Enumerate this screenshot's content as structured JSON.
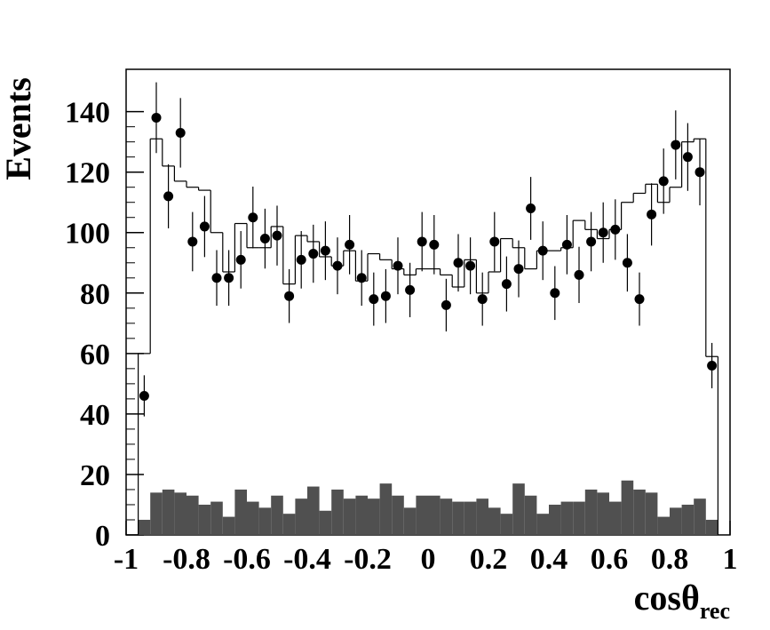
{
  "chart_data": {
    "type": "histogram",
    "ylabel": "Events",
    "xlabel": "cosθ",
    "xlabel_sub": "rec",
    "xlim": [
      -1,
      1
    ],
    "ylim": [
      0,
      154
    ],
    "xticks": [
      -1,
      -0.8,
      -0.6,
      -0.4,
      -0.2,
      0,
      0.2,
      0.4,
      0.6,
      0.8,
      1
    ],
    "yticks": [
      0,
      20,
      40,
      60,
      80,
      100,
      120,
      140
    ],
    "bins": [
      -0.96,
      -0.92,
      -0.88,
      -0.84,
      -0.8,
      -0.76,
      -0.72,
      -0.68,
      -0.64,
      -0.6,
      -0.56,
      -0.52,
      -0.48,
      -0.44,
      -0.4,
      -0.36,
      -0.32,
      -0.28,
      -0.24,
      -0.2,
      -0.16,
      -0.12,
      -0.08,
      -0.04,
      0,
      0.04,
      0.08,
      0.12,
      0.16,
      0.2,
      0.24,
      0.28,
      0.32,
      0.36,
      0.4,
      0.44,
      0.48,
      0.52,
      0.56,
      0.6,
      0.64,
      0.68,
      0.72,
      0.76,
      0.8,
      0.84,
      0.88,
      0.92,
      0.96
    ],
    "series": [
      {
        "style": "fill",
        "color": "#505050",
        "values": [
          5,
          14,
          15,
          14,
          13,
          10,
          11,
          6,
          15,
          11,
          9,
          13,
          7,
          12,
          16,
          8,
          15,
          12,
          13,
          12,
          17,
          13,
          9,
          13,
          13,
          12,
          11,
          11,
          12,
          9,
          7,
          17,
          13,
          7,
          10,
          11,
          11,
          15,
          14,
          11,
          18,
          15,
          14,
          6,
          9,
          10,
          12,
          5
        ]
      },
      {
        "style": "step",
        "color": "#000000",
        "values": [
          60,
          131,
          122,
          117,
          115,
          114,
          100,
          87,
          103,
          95,
          95,
          102,
          83,
          99,
          97,
          92,
          89,
          94,
          84,
          93,
          91,
          88,
          86,
          88,
          88,
          86,
          82,
          91,
          80,
          87,
          98,
          95,
          88,
          94,
          94,
          95,
          104,
          101,
          98,
          101,
          110,
          113,
          116,
          110,
          115,
          130,
          131,
          59
        ]
      },
      {
        "style": "points",
        "color": "#000000",
        "values": [
          46,
          138,
          112,
          133,
          97,
          102,
          85,
          85,
          91,
          105,
          98,
          99,
          79,
          91,
          93,
          94,
          89,
          96,
          85,
          78,
          79,
          89,
          81,
          97,
          96,
          76,
          90,
          89,
          78,
          97,
          83,
          88,
          108,
          94,
          80,
          96,
          86,
          97,
          100,
          101,
          90,
          78,
          106,
          117,
          129,
          125,
          120,
          56
        ],
        "errors": [
          6.8,
          11.7,
          10.6,
          11.5,
          9.8,
          10.1,
          9.2,
          9.2,
          9.5,
          10.2,
          9.9,
          9.9,
          8.9,
          9.5,
          9.6,
          9.7,
          9.4,
          9.8,
          9.2,
          8.8,
          8.9,
          9.4,
          9.0,
          9.8,
          9.8,
          8.7,
          9.5,
          9.4,
          8.8,
          9.8,
          9.1,
          9.4,
          10.4,
          9.7,
          8.9,
          9.8,
          9.3,
          9.8,
          10,
          10,
          9.5,
          8.8,
          10.3,
          10.8,
          11.4,
          11.2,
          11,
          7.5
        ]
      }
    ]
  }
}
